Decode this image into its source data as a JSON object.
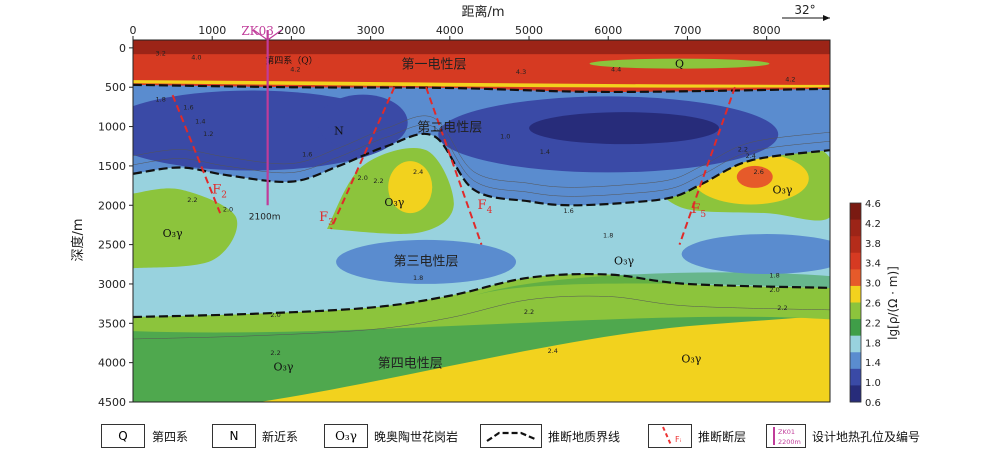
{
  "chart_data": {
    "type": "heatmap",
    "xlabel": "距离/m",
    "ylabel": "深度/m",
    "xlim": [
      0,
      8800
    ],
    "ylim": [
      4500,
      -100
    ],
    "x_ticks": [
      "0",
      "1000",
      "2000",
      "3000",
      "4000",
      "5000",
      "6000",
      "7000",
      "8000"
    ],
    "y_ticks": [
      "0",
      "500",
      "1000",
      "1500",
      "2000",
      "2500",
      "3000",
      "3500",
      "4000",
      "4500"
    ],
    "x_tick_values": [
      0,
      1000,
      2000,
      3000,
      4000,
      5000,
      6000,
      7000,
      8000
    ],
    "y_tick_values": [
      0,
      500,
      1000,
      1500,
      2000,
      2500,
      3000,
      3500,
      4000,
      4500
    ],
    "orientation": "32°",
    "colorbar": {
      "label": "lg[ρ/(Ω · m)]",
      "ticks": [
        "4.6",
        "4.2",
        "3.8",
        "3.4",
        "3.0",
        "2.6",
        "2.2",
        "1.8",
        "1.4",
        "1.0",
        "0.6"
      ],
      "colors": [
        "#7a1a12",
        "#9c2417",
        "#b52c1a",
        "#d63a22",
        "#e65a2a",
        "#f2d21e",
        "#8cc43c",
        "#3f9e48",
        "#98d2de",
        "#5a8ccf",
        "#3a4aa6",
        "#272c7a"
      ]
    },
    "layers": [
      {
        "label": "第一电性层",
        "x": 3800,
        "depth": 200
      },
      {
        "label": "第二电性层",
        "x": 4000,
        "depth": 1000
      },
      {
        "label": "第三电性层",
        "x": 3700,
        "depth": 2700
      },
      {
        "label": "第四电性层",
        "x": 3500,
        "depth": 4000
      }
    ],
    "boundaries": [
      {
        "name": "Q-base",
        "points": [
          [
            0,
            470
          ],
          [
            2000,
            500
          ],
          [
            4000,
            510
          ],
          [
            6000,
            560
          ],
          [
            8800,
            520
          ]
        ]
      },
      {
        "name": "layer2-base",
        "points": [
          [
            0,
            1600
          ],
          [
            600,
            1520
          ],
          [
            1200,
            1620
          ],
          [
            2000,
            1700
          ],
          [
            2600,
            1500
          ],
          [
            3200,
            1250
          ],
          [
            3800,
            1120
          ],
          [
            4300,
            1800
          ],
          [
            5000,
            1950
          ],
          [
            5500,
            2000
          ],
          [
            6200,
            1970
          ],
          [
            6800,
            1900
          ],
          [
            7200,
            1720
          ],
          [
            7800,
            1430
          ],
          [
            8800,
            1300
          ]
        ]
      },
      {
        "name": "layer3-base",
        "points": [
          [
            0,
            3420
          ],
          [
            1500,
            3380
          ],
          [
            3000,
            3300
          ],
          [
            4000,
            3150
          ],
          [
            5000,
            2920
          ],
          [
            6000,
            2880
          ],
          [
            7000,
            3000
          ],
          [
            8800,
            3050
          ]
        ]
      }
    ],
    "faults": [
      {
        "label": "F2",
        "points": [
          [
            500,
            600
          ],
          [
            1100,
            2100
          ]
        ]
      },
      {
        "label": "F3",
        "points": [
          [
            3300,
            500
          ],
          [
            2500,
            2300
          ]
        ]
      },
      {
        "label": "F4",
        "points": [
          [
            3700,
            500
          ],
          [
            4400,
            2500
          ]
        ]
      },
      {
        "label": "F5",
        "points": [
          [
            7600,
            500
          ],
          [
            6900,
            2500
          ]
        ]
      }
    ],
    "borehole": {
      "label": "ZK03",
      "x": 1700,
      "depth_label": "2100m",
      "depth": 2000
    },
    "annotations": [
      {
        "text": "第四系（Q）",
        "x": 2000,
        "depth": 150
      },
      {
        "text": "Q",
        "x": 6900,
        "depth": 200
      },
      {
        "text": "N",
        "x": 2600,
        "depth": 1050
      },
      {
        "text": "O₃γ",
        "x": 500,
        "depth": 2350
      },
      {
        "text": "O₃γ",
        "x": 3300,
        "depth": 1960
      },
      {
        "text": "O₃γ",
        "x": 6200,
        "depth": 2700
      },
      {
        "text": "O₃γ",
        "x": 8200,
        "depth": 1800
      },
      {
        "text": "O₃γ",
        "x": 1900,
        "depth": 4050
      },
      {
        "text": "O₃γ",
        "x": 7050,
        "depth": 3950
      }
    ],
    "contour_labels": [
      {
        "v": "3.2",
        "x": 350,
        "depth": 100
      },
      {
        "v": "4.0",
        "x": 800,
        "depth": 150
      },
      {
        "v": "4.2",
        "x": 2050,
        "depth": 300
      },
      {
        "v": "4.3",
        "x": 4900,
        "depth": 330
      },
      {
        "v": "4.4",
        "x": 6100,
        "depth": 300
      },
      {
        "v": "4.2",
        "x": 8300,
        "depth": 430
      },
      {
        "v": "1.8",
        "x": 350,
        "depth": 680
      },
      {
        "v": "1.6",
        "x": 700,
        "depth": 780
      },
      {
        "v": "1.4",
        "x": 850,
        "depth": 960
      },
      {
        "v": "1.2",
        "x": 950,
        "depth": 1120
      },
      {
        "v": "1.6",
        "x": 2200,
        "depth": 1380
      },
      {
        "v": "1.4",
        "x": 3850,
        "depth": 1050
      },
      {
        "v": "1.0",
        "x": 4700,
        "depth": 1150
      },
      {
        "v": "1.4",
        "x": 5200,
        "depth": 1350
      },
      {
        "v": "2.0",
        "x": 2900,
        "depth": 1680
      },
      {
        "v": "2.2",
        "x": 3100,
        "depth": 1720
      },
      {
        "v": "2.4",
        "x": 3600,
        "depth": 1600
      },
      {
        "v": "2.2",
        "x": 7700,
        "depth": 1320
      },
      {
        "v": "2.4",
        "x": 7800,
        "depth": 1400
      },
      {
        "v": "2.6",
        "x": 7900,
        "depth": 1600
      },
      {
        "v": "2.2",
        "x": 750,
        "depth": 1960
      },
      {
        "v": "2.0",
        "x": 1200,
        "depth": 2080
      },
      {
        "v": "1.6",
        "x": 5500,
        "depth": 2100
      },
      {
        "v": "1.8",
        "x": 6000,
        "depth": 2410
      },
      {
        "v": "1.8",
        "x": 3600,
        "depth": 2950
      },
      {
        "v": "1.8",
        "x": 8100,
        "depth": 2920
      },
      {
        "v": "2.0",
        "x": 8100,
        "depth": 3100
      },
      {
        "v": "2.0",
        "x": 1800,
        "depth": 3420
      },
      {
        "v": "2.2",
        "x": 5000,
        "depth": 3380
      },
      {
        "v": "2.2",
        "x": 8200,
        "depth": 3330
      },
      {
        "v": "2.2",
        "x": 1800,
        "depth": 3900
      },
      {
        "v": "2.4",
        "x": 5300,
        "depth": 3880
      }
    ]
  },
  "legend": {
    "items": [
      {
        "symbol": "Q",
        "label": "第四系"
      },
      {
        "symbol": "N",
        "label": "新近系"
      },
      {
        "symbol": "O₃γ",
        "label": "晚奥陶世花岗岩"
      },
      {
        "symbol": "",
        "label": "推断地质界线"
      },
      {
        "symbol": "Fᵢ",
        "label": "推断断层"
      },
      {
        "symbol": "ZK01",
        "symbol_sub": "2200m",
        "label": "设计地热孔位及编号"
      }
    ]
  }
}
